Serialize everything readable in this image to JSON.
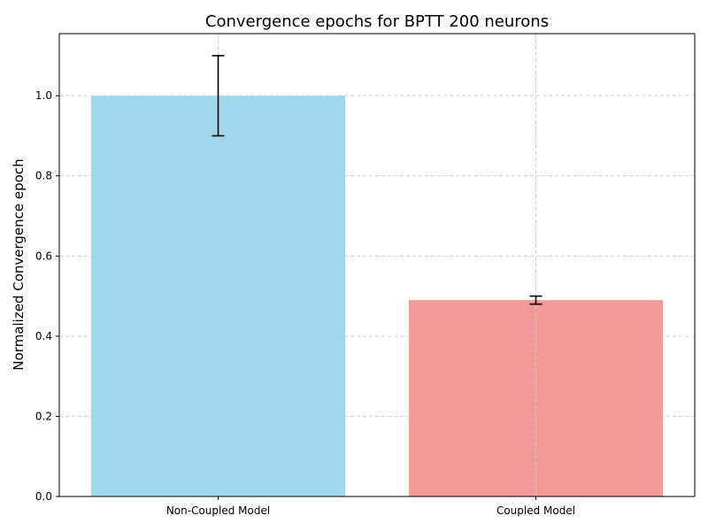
{
  "chart_data": {
    "type": "bar",
    "title": "Convergence epochs for BPTT 200 neurons",
    "xlabel": "",
    "ylabel": "Normalized Convergence epoch",
    "categories": [
      "Non-Coupled Model",
      "Coupled Model"
    ],
    "values": [
      1.0,
      0.49
    ],
    "errors": [
      0.1,
      0.01
    ],
    "colors": [
      "#9fd7ec",
      "#f29a99"
    ],
    "ylim": [
      0,
      1.155
    ],
    "yticks": [
      "0.0",
      "0.2",
      "0.4",
      "0.6",
      "0.8",
      "1.0"
    ],
    "grid": true,
    "legend": "none"
  }
}
